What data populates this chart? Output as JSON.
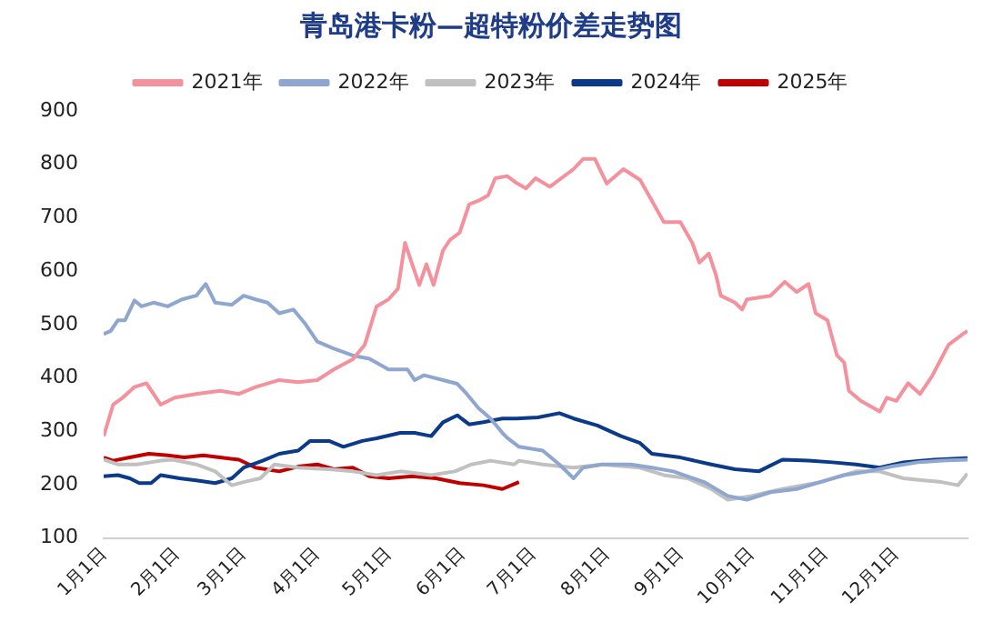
{
  "chart_data": {
    "type": "line",
    "title": "青岛港卡粉—超特粉价差走势图",
    "legend": "top",
    "grid": false,
    "marker": "none",
    "line_style": "solid",
    "xlim": [
      "--01-01",
      "--12-31"
    ],
    "xticks": [
      {
        "value": "--01-01",
        "label": "1月1日"
      },
      {
        "value": "--02-01",
        "label": "2月1日"
      },
      {
        "value": "--03-01",
        "label": "3月1日"
      },
      {
        "value": "--04-01",
        "label": "4月1日"
      },
      {
        "value": "--05-01",
        "label": "5月1日"
      },
      {
        "value": "--06-01",
        "label": "6月1日"
      },
      {
        "value": "--07-01",
        "label": "7月1日"
      },
      {
        "value": "--08-01",
        "label": "8月1日"
      },
      {
        "value": "--09-01",
        "label": "9月1日"
      },
      {
        "value": "--10-01",
        "label": "10月1日"
      },
      {
        "value": "--11-01",
        "label": "11月1日"
      },
      {
        "value": "--12-01",
        "label": "12月1日"
      }
    ],
    "ylim": [
      100,
      900
    ],
    "yticks": [
      100,
      200,
      300,
      400,
      500,
      600,
      700,
      800,
      900
    ],
    "series": [
      {
        "name": "2021年",
        "color": "#f4919c",
        "x": [
          "--01-01",
          "--01-05",
          "--01-09",
          "--01-14",
          "--01-19",
          "--01-25",
          "--01-31",
          "--02-09",
          "--02-19",
          "--02-27",
          "--03-06",
          "--03-16",
          "--03-24",
          "--04-01",
          "--04-08",
          "--04-16",
          "--04-21",
          "--04-26",
          "--05-01",
          "--05-05",
          "--05-08",
          "--05-11",
          "--05-14",
          "--05-17",
          "--05-20",
          "--05-24",
          "--05-27",
          "--05-31",
          "--06-04",
          "--06-08",
          "--06-12",
          "--06-15",
          "--06-20",
          "--06-24",
          "--06-28",
          "--07-02",
          "--07-08",
          "--07-18",
          "--07-22",
          "--07-27",
          "--08-01",
          "--08-08",
          "--08-15",
          "--08-20",
          "--08-25",
          "--09-01",
          "--09-06",
          "--09-09",
          "--09-13",
          "--09-16",
          "--09-18",
          "--09-24",
          "--09-27",
          "--09-29",
          "--10-09",
          "--10-15",
          "--10-20",
          "--10-25",
          "--10-28",
          "--11-02",
          "--11-06",
          "--11-09",
          "--11-11",
          "--11-16",
          "--11-24",
          "--11-27",
          "--12-01",
          "--12-06",
          "--12-11",
          "--12-16",
          "--12-23",
          "--12-29",
          "--12-31"
        ],
        "values": [
          291,
          350,
          363,
          383,
          390,
          350,
          363,
          370,
          376,
          370,
          383,
          396,
          392,
          396,
          416,
          435,
          462,
          534,
          547,
          567,
          653,
          613,
          574,
          613,
          574,
          639,
          659,
          672,
          725,
          732,
          742,
          774,
          778,
          765,
          755,
          774,
          758,
          791,
          810,
          810,
          764,
          791,
          771,
          732,
          692,
          692,
          653,
          616,
          633,
          593,
          554,
          541,
          528,
          547,
          554,
          580,
          561,
          576,
          521,
          508,
          442,
          429,
          376,
          357,
          337,
          363,
          357,
          390,
          370,
          403,
          462,
          482,
          488
        ]
      },
      {
        "name": "2022年",
        "color": "#8ea6d0",
        "x": [
          "--01-01",
          "--01-04",
          "--01-07",
          "--01-10",
          "--01-14",
          "--01-17",
          "--01-22",
          "--01-28",
          "--02-03",
          "--02-09",
          "--02-13",
          "--02-17",
          "--02-24",
          "--03-01",
          "--03-06",
          "--03-11",
          "--03-16",
          "--03-22",
          "--03-27",
          "--04-01",
          "--04-08",
          "--04-16",
          "--04-23",
          "--05-01",
          "--05-09",
          "--05-12",
          "--05-16",
          "--05-24",
          "--05-30",
          "--06-03",
          "--06-08",
          "--06-13",
          "--06-18",
          "--06-20",
          "--06-25",
          "--07-05",
          "--07-12",
          "--07-18",
          "--07-22",
          "--07-30",
          "--08-11",
          "--08-20",
          "--08-29",
          "--09-11",
          "--09-21",
          "--09-29",
          "--10-09",
          "--10-20",
          "--10-30",
          "--11-09",
          "--11-19",
          "--11-29",
          "--12-10",
          "--12-20",
          "--12-31"
        ],
        "values": [
          482,
          488,
          508,
          508,
          545,
          534,
          541,
          534,
          547,
          554,
          576,
          541,
          537,
          554,
          547,
          541,
          521,
          528,
          501,
          468,
          455,
          442,
          436,
          416,
          416,
          396,
          405,
          396,
          389,
          370,
          343,
          324,
          297,
          288,
          271,
          264,
          238,
          212,
          232,
          238,
          238,
          232,
          225,
          205,
          179,
          172,
          186,
          192,
          205,
          218,
          225,
          234,
          242,
          245,
          247
        ]
      },
      {
        "name": "2023年",
        "color": "#c0c0c0",
        "x": [
          "--01-01",
          "--01-07",
          "--01-15",
          "--01-25",
          "--01-30",
          "--02-09",
          "--02-17",
          "--02-24",
          "--03-01",
          "--03-08",
          "--03-14",
          "--03-24",
          "--04-06",
          "--04-16",
          "--04-26",
          "--05-06",
          "--05-19",
          "--05-29",
          "--06-05",
          "--06-13",
          "--06-23",
          "--06-25",
          "--07-05",
          "--07-18",
          "--07-30",
          "--08-15",
          "--08-25",
          "--09-04",
          "--09-14",
          "--09-21",
          "--10-01",
          "--10-14",
          "--10-30",
          "--11-14",
          "--11-24",
          "--12-04",
          "--12-20",
          "--12-27",
          "--12-31"
        ],
        "values": [
          247,
          238,
          238,
          245,
          247,
          238,
          225,
          199,
          205,
          212,
          238,
          232,
          229,
          225,
          218,
          225,
          218,
          225,
          238,
          245,
          238,
          245,
          238,
          232,
          238,
          232,
          218,
          212,
          192,
          172,
          179,
          192,
          205,
          225,
          225,
          212,
          205,
          199,
          221
        ]
      },
      {
        "name": "2024年",
        "color": "#0b3a8a",
        "x": [
          "--01-01",
          "--01-07",
          "--01-12",
          "--01-16",
          "--01-21",
          "--01-25",
          "--02-02",
          "--02-09",
          "--02-17",
          "--02-24",
          "--03-01",
          "--03-09",
          "--03-16",
          "--03-24",
          "--03-29",
          "--04-06",
          "--04-12",
          "--04-20",
          "--04-26",
          "--05-06",
          "--05-12",
          "--05-19",
          "--05-24",
          "--05-30",
          "--06-04",
          "--06-10",
          "--06-18",
          "--06-24",
          "--07-03",
          "--07-12",
          "--07-18",
          "--07-28",
          "--08-07",
          "--08-15",
          "--08-20",
          "--09-01",
          "--09-14",
          "--09-24",
          "--10-04",
          "--10-14",
          "--10-25",
          "--11-04",
          "--11-14",
          "--11-24",
          "--12-04",
          "--12-17",
          "--12-31"
        ],
        "values": [
          216,
          218,
          212,
          203,
          203,
          218,
          212,
          208,
          203,
          212,
          232,
          245,
          258,
          264,
          282,
          282,
          271,
          282,
          287,
          297,
          297,
          291,
          317,
          330,
          313,
          317,
          324,
          324,
          326,
          334,
          324,
          311,
          291,
          278,
          258,
          251,
          238,
          229,
          225,
          247,
          245,
          242,
          238,
          232,
          242,
          247,
          250
        ]
      },
      {
        "name": "2025年",
        "color": "#c00000",
        "x": [
          "--01-01",
          "--01-05",
          "--01-12",
          "--01-20",
          "--01-28",
          "--02-04",
          "--02-12",
          "--02-19",
          "--02-27",
          "--03-06",
          "--03-16",
          "--03-24",
          "--04-01",
          "--04-08",
          "--04-16",
          "--04-23",
          "--05-01",
          "--05-11",
          "--05-21",
          "--05-31",
          "--06-10",
          "--06-18",
          "--06-25"
        ],
        "values": [
          251,
          245,
          251,
          258,
          255,
          251,
          255,
          251,
          247,
          232,
          225,
          234,
          238,
          229,
          232,
          216,
          212,
          216,
          212,
          203,
          199,
          192,
          205
        ]
      }
    ]
  }
}
